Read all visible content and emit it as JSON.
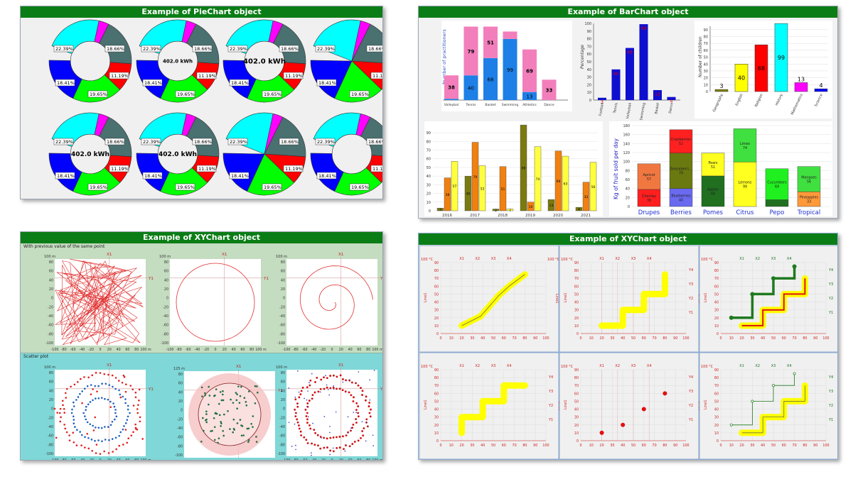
{
  "pie_panel": {
    "title": "Example of PieChart object",
    "center_label": "402.0 kWh",
    "percent_labels": [
      "22.39%",
      "18.66%",
      "11.19%",
      "19.65%",
      "18.41%"
    ],
    "slice_colors": [
      "#00ffff",
      "#ff00ff",
      "#4a7070",
      "#ff0000",
      "#00ff00",
      "#0000ff"
    ]
  },
  "bar_panel": {
    "title": "Example of BarChart object",
    "chart1": {
      "ylabel": "Number of practitioners",
      "categories": [
        "Volleybal",
        "Tennis",
        "Basket",
        "Swimming",
        "Athletics",
        "Dance"
      ],
      "bottom_values": [
        "",
        "40",
        "68",
        "99",
        "13",
        ""
      ],
      "top_values": [
        "38",
        "79",
        "51",
        "",
        "69",
        "33"
      ]
    },
    "chart2": {
      "ylabel": "Percentage",
      "categories": [
        "Football",
        "Tennis",
        "Volleyball",
        "Swimming",
        "Basket",
        "Dance"
      ],
      "values": [
        "3",
        "40",
        "68",
        "99",
        "13",
        "4"
      ],
      "yticks": [
        "0",
        "10",
        "20",
        "30",
        "40",
        "50",
        "60",
        "70",
        "80",
        "90",
        "100"
      ]
    },
    "chart3": {
      "ylabel": "Number of children",
      "categories": [
        "Geography",
        "English",
        "Religion",
        "History",
        "Mathematics",
        "Science"
      ],
      "values": [
        "3",
        "40",
        "68",
        "99",
        "13",
        "4"
      ],
      "colors": [
        "#808000",
        "#ffff00",
        "#ff0000",
        "#00ffff",
        "#ff00ff",
        "#0000ff"
      ],
      "yticks": [
        "0",
        "10",
        "20",
        "30",
        "40",
        "50",
        "60",
        "70",
        "80",
        "90"
      ]
    },
    "chart4": {
      "years": [
        "2016",
        "2017",
        "2018",
        "2019",
        "2020",
        "2021"
      ],
      "labels": [
        [
          "3",
          "38",
          "57"
        ],
        [
          "40",
          "79",
          "52"
        ],
        [
          "2",
          "51",
          "7"
        ],
        [
          "99",
          "10",
          "74"
        ],
        [
          "13",
          "69",
          "63"
        ],
        [
          "4",
          "33",
          "56"
        ]
      ],
      "yticks": [
        "0",
        "10",
        "20",
        "30",
        "40",
        "50",
        "60",
        "70",
        "80",
        "90"
      ]
    },
    "chart5": {
      "ylabel": "Kg of fruit sold per day",
      "categories": [
        "Drupes",
        "Berries",
        "Pomes",
        "Citrus",
        "Pepo",
        "Tropical"
      ],
      "segment_labels": [
        [
          "Cherries",
          "38"
        ],
        [
          "Apricot",
          "57"
        ],
        [
          "Blueberries",
          "40"
        ],
        [
          "Gooseberri...",
          "79"
        ],
        [
          "Cranberries",
          "52"
        ],
        [
          "Apples",
          "68"
        ],
        [
          "Pears",
          "51"
        ],
        [
          "Lemons",
          "99"
        ],
        [
          "Limes",
          "74"
        ],
        [
          "Cucumbers",
          "69"
        ],
        [
          "Pineapples",
          "33"
        ],
        [
          "Mangoes",
          "56"
        ]
      ],
      "yticks": [
        "0",
        "20",
        "40",
        "60",
        "80",
        "100",
        "120",
        "140",
        "160",
        "180"
      ]
    }
  },
  "xy_panel1": {
    "title": "Example of XYChart object",
    "section1": "With previous value of the same point",
    "section2": "Scatter plot",
    "unit_m": "100 m",
    "unit_125": "125 m",
    "x1": "X1",
    "y1": "Y1",
    "ticks100": [
      "-100",
      "-80",
      "-60",
      "-40",
      "-20",
      "0",
      "20",
      "40",
      "60",
      "80",
      "100 m"
    ],
    "yticks100": [
      "80",
      "60",
      "40",
      "20",
      "0",
      "-20",
      "-40",
      "-60",
      "-80",
      "-100"
    ],
    "ticks125": [
      "-125",
      "-100",
      "-75",
      "-50",
      "-25",
      "0",
      "25",
      "50",
      "75",
      "100",
      "125 m"
    ]
  },
  "xy_panel2": {
    "title": "Example of XYChart object",
    "xlabels": [
      "X1",
      "X2",
      "X3",
      "X4"
    ],
    "ylabels": [
      "Y4",
      "Y3",
      "Y2",
      "Y1"
    ],
    "unit": "100 °C",
    "yticks": [
      "90",
      "80",
      "70",
      "60",
      "50",
      "40",
      "30",
      "20",
      "10",
      "0"
    ],
    "xticks": [
      "0",
      "10",
      "20",
      "30",
      "40",
      "50",
      "60",
      "70",
      "80",
      "90",
      "100"
    ],
    "line1": "Line1",
    "line2": "Line2"
  }
}
